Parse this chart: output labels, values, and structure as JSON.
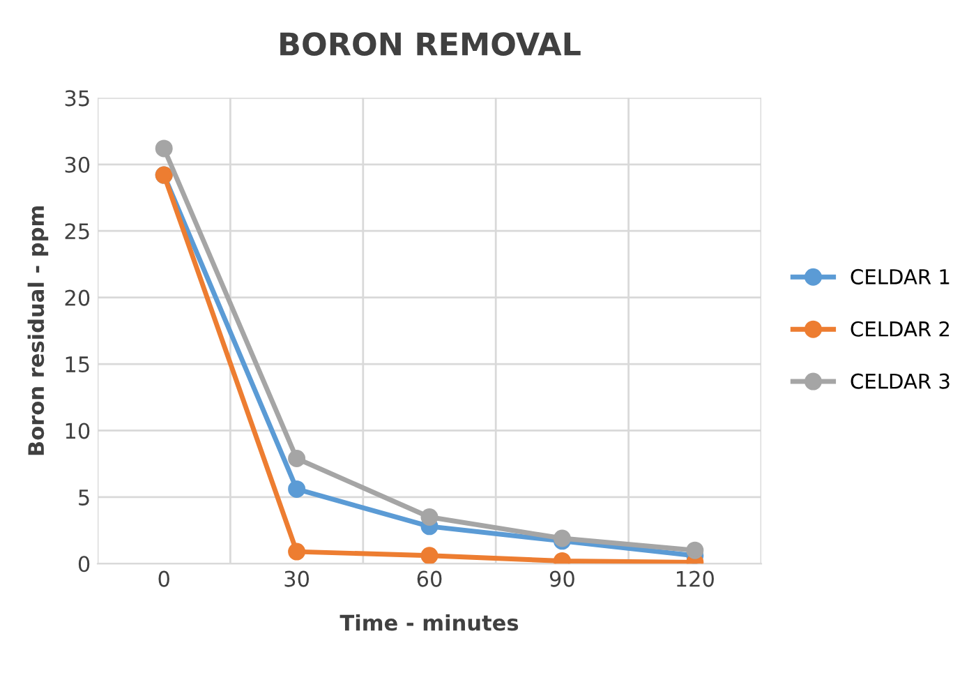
{
  "chart_data": {
    "type": "line",
    "title": "BORON REMOVAL",
    "xlabel": "Time - minutes",
    "ylabel": "Boron residual - ppm",
    "categories": [
      "0",
      "30",
      "60",
      "90",
      "120"
    ],
    "series": [
      {
        "name": "CELDAR 1",
        "color": "#5b9bd5",
        "values": [
          29.2,
          5.6,
          2.8,
          1.7,
          0.6
        ]
      },
      {
        "name": "CELDAR 2",
        "color": "#ed7d31",
        "values": [
          29.2,
          0.9,
          0.6,
          0.2,
          0.1
        ]
      },
      {
        "name": "CELDAR 3",
        "color": "#a5a5a5",
        "values": [
          31.2,
          7.9,
          3.5,
          1.9,
          1.0
        ]
      }
    ],
    "ylim": [
      0,
      35
    ],
    "yticks": [
      0,
      5,
      10,
      15,
      20,
      25,
      30,
      35
    ],
    "grid": true,
    "legend": "right",
    "marker": "circle",
    "line_style": "solid"
  }
}
